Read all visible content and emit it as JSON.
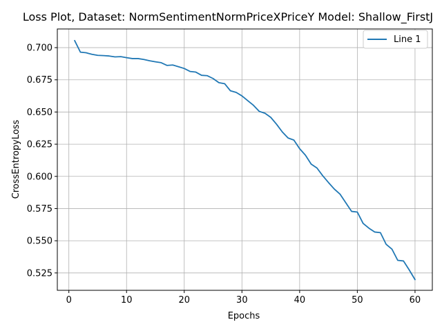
{
  "chart_data": {
    "type": "line",
    "title": "Loss Plot, Dataset: NormSentimentNormPriceXPriceY Model: Shallow_FirstJ",
    "xlabel": "Epochs",
    "ylabel": "CrossEntropyLoss",
    "xlim": [
      -2,
      63
    ],
    "ylim": [
      0.5115,
      0.7145
    ],
    "xticks": [
      0,
      10,
      20,
      30,
      40,
      50,
      60
    ],
    "yticks": [
      0.525,
      0.55,
      0.575,
      0.6,
      0.625,
      0.65,
      0.675,
      0.7
    ],
    "grid": true,
    "legend_position": "top-right",
    "color": "#1f77b4",
    "series": [
      {
        "name": "Line 1",
        "x": [
          1,
          2,
          3,
          4,
          5,
          6,
          7,
          8,
          9,
          10,
          11,
          12,
          13,
          14,
          15,
          16,
          17,
          18,
          19,
          20,
          21,
          22,
          23,
          24,
          25,
          26,
          27,
          28,
          29,
          30,
          31,
          32,
          33,
          34,
          35,
          36,
          37,
          38,
          39,
          40,
          41,
          42,
          43,
          44,
          45,
          46,
          47,
          48,
          49,
          50,
          51,
          52,
          53,
          54,
          55,
          56,
          57,
          58,
          59,
          60
        ],
        "values": [
          0.7055,
          0.6965,
          0.696,
          0.6948,
          0.694,
          0.6938,
          0.6935,
          0.6928,
          0.693,
          0.6922,
          0.6915,
          0.6915,
          0.6908,
          0.6898,
          0.689,
          0.6883,
          0.6862,
          0.6865,
          0.6852,
          0.6838,
          0.6815,
          0.681,
          0.6785,
          0.6782,
          0.676,
          0.6728,
          0.672,
          0.6665,
          0.6652,
          0.6625,
          0.6588,
          0.6552,
          0.6505,
          0.649,
          0.6458,
          0.6405,
          0.6345,
          0.6298,
          0.6282,
          0.6215,
          0.6165,
          0.6095,
          0.6065,
          0.6005,
          0.5952,
          0.5902,
          0.5862,
          0.5795,
          0.5728,
          0.5723,
          0.5635,
          0.5598,
          0.5568,
          0.5563,
          0.5472,
          0.5435,
          0.5348,
          0.5343,
          0.5273,
          0.5198
        ]
      }
    ]
  }
}
